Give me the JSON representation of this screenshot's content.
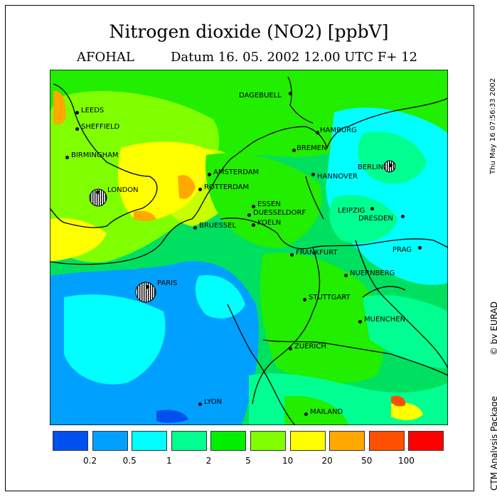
{
  "title": "Nitrogen dioxide (NO2) [ppbV]",
  "model": "AFOHAL",
  "datum_line": "Datum  16. 05. 2002 12.00 UTC F+ 12",
  "side_timestamp": "Thu May 16 07:56:33 2002",
  "side_credit": "by EURAD",
  "side_package": "CTM Analysis Package",
  "cities": [
    {
      "name": "LEEDS"
    },
    {
      "name": "SHEFFIELD"
    },
    {
      "name": "BIRMINGHAM"
    },
    {
      "name": "LONDON"
    },
    {
      "name": "DAGEBUELL"
    },
    {
      "name": "HAMBURG"
    },
    {
      "name": "BREMEN"
    },
    {
      "name": "AMSTERDAM"
    },
    {
      "name": "ROTTERDAM"
    },
    {
      "name": "HANNOVER"
    },
    {
      "name": "BERLIN"
    },
    {
      "name": "ESSEN"
    },
    {
      "name": "DUESSELDORF"
    },
    {
      "name": "KOELN"
    },
    {
      "name": "BRUESSEL"
    },
    {
      "name": "LEIPZIG"
    },
    {
      "name": "DRESDEN"
    },
    {
      "name": "FRANKFURT"
    },
    {
      "name": "PRAG"
    },
    {
      "name": "PARIS"
    },
    {
      "name": "NUERNBERG"
    },
    {
      "name": "STUTTGART"
    },
    {
      "name": "MUENCHEN"
    },
    {
      "name": "ZUERICH"
    },
    {
      "name": "LYON"
    },
    {
      "name": "MAILAND"
    }
  ],
  "legend": {
    "colors": [
      "#0050f0",
      "#00a0ff",
      "#00ffff",
      "#00ff90",
      "#00f000",
      "#80ff00",
      "#ffff00",
      "#ffa800",
      "#ff5000",
      "#ff0000"
    ],
    "ticks": [
      "0.2",
      "0.5",
      "1",
      "2",
      "5",
      "10",
      "20",
      "50",
      "100"
    ]
  }
}
